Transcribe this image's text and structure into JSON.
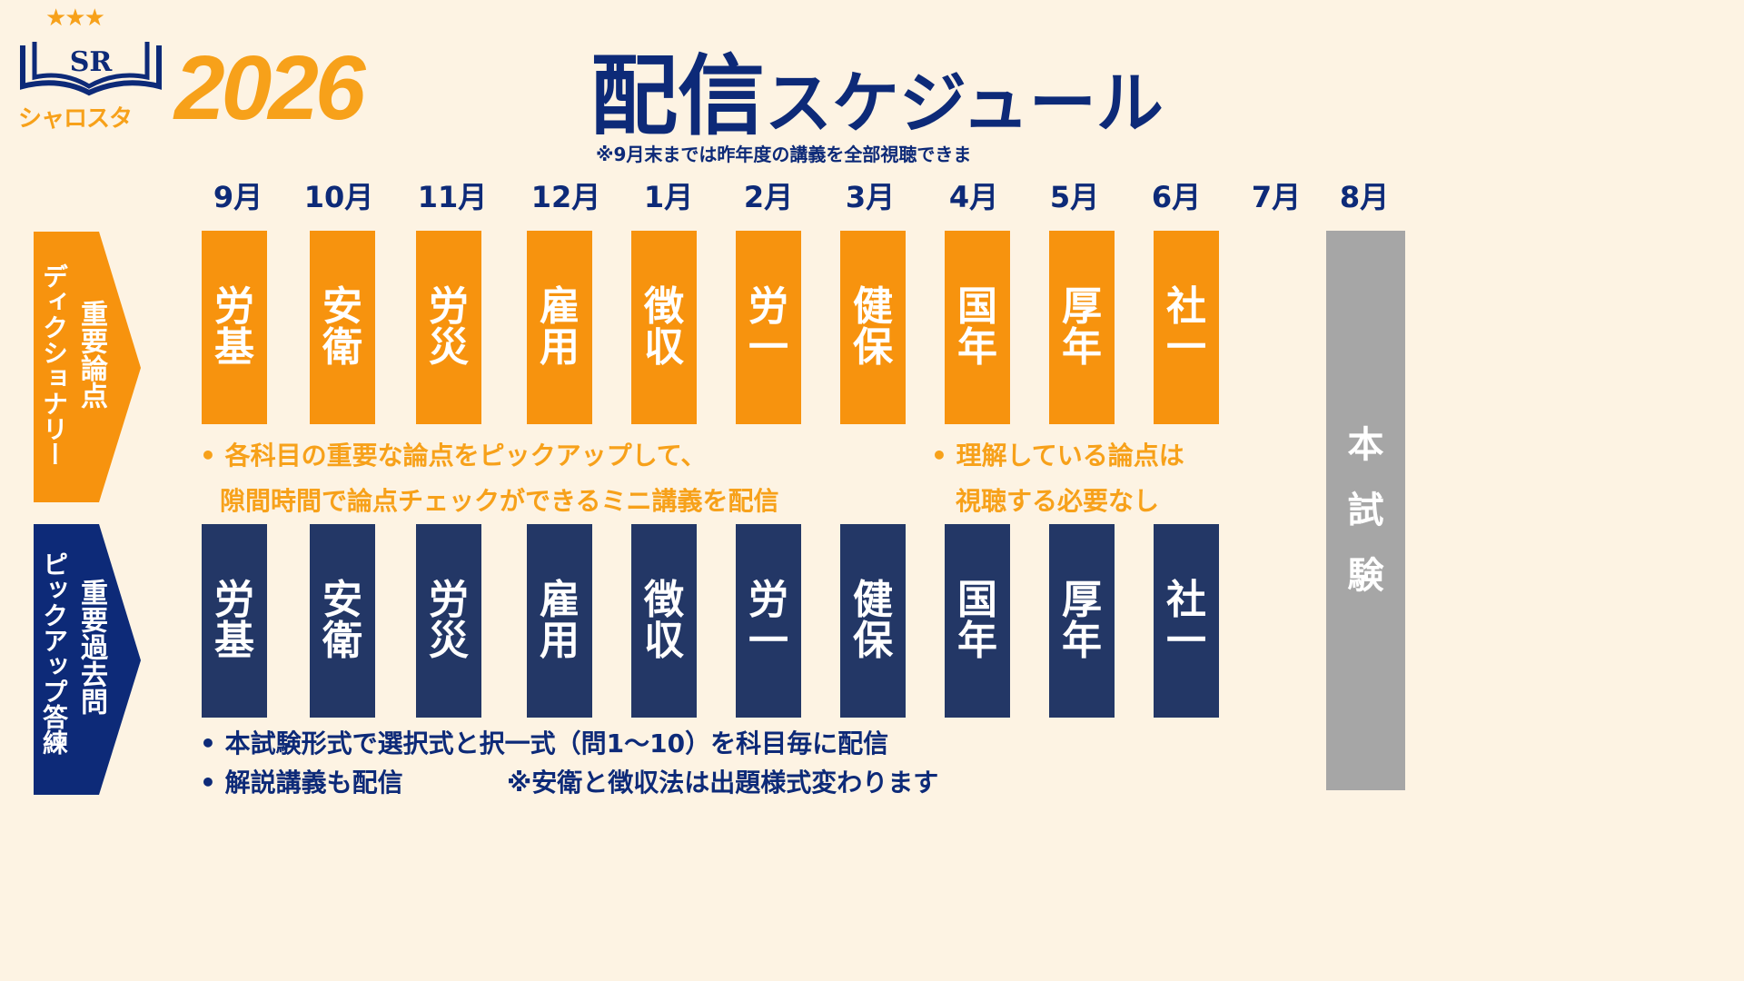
{
  "logo": {
    "letters": "SR",
    "kana": "シャロスタ",
    "year": "2026"
  },
  "title": {
    "main": "配信",
    "sub": "スケジュール",
    "note": "※9月末までは昨年度の講義を全部視聴できま"
  },
  "months": [
    "9月",
    "10月",
    "11月",
    "12月",
    "1月",
    "2月",
    "3月",
    "4月",
    "5月",
    "6月",
    "7月",
    "8月"
  ],
  "colors": {
    "orange": "#F7930E",
    "navy": "#233766",
    "label_navy": "#0D2A78",
    "exam": "#A6A6A6",
    "background": "#FDF3E3"
  },
  "rows": [
    {
      "label_main": "重要論点",
      "label_sub": "ディクショナリー",
      "subjects": [
        [
          "労",
          "基"
        ],
        [
          "安",
          "衛"
        ],
        [
          "労",
          "災"
        ],
        [
          "雇",
          "用"
        ],
        [
          "徴",
          "収"
        ],
        [
          "労",
          "一"
        ],
        [
          "健",
          "保"
        ],
        [
          "国",
          "年"
        ],
        [
          "厚",
          "年"
        ],
        [
          "社",
          "一"
        ]
      ],
      "bullets": [
        "• 各科目の重要な論点をピックアップして、",
        "隙間時間で論点チェックができるミニ講義を配信"
      ],
      "side_bullets": [
        "• 理解している論点は",
        "視聴する必要なし"
      ]
    },
    {
      "label_main": "重要過去問",
      "label_sub": "ピックアップ答練",
      "subjects": [
        [
          "労",
          "基"
        ],
        [
          "安",
          "衛"
        ],
        [
          "労",
          "災"
        ],
        [
          "雇",
          "用"
        ],
        [
          "徴",
          "収"
        ],
        [
          "労",
          "一"
        ],
        [
          "健",
          "保"
        ],
        [
          "国",
          "年"
        ],
        [
          "厚",
          "年"
        ],
        [
          "社",
          "一"
        ]
      ],
      "bullets": [
        "• 本試験形式で選択式と択一式（問1～10）を科目毎に配信",
        "• 解説講義も配信"
      ],
      "side_note": "※安衛と徴収法は出題様式変わります"
    }
  ],
  "exam": [
    "本",
    "試",
    "験"
  ]
}
